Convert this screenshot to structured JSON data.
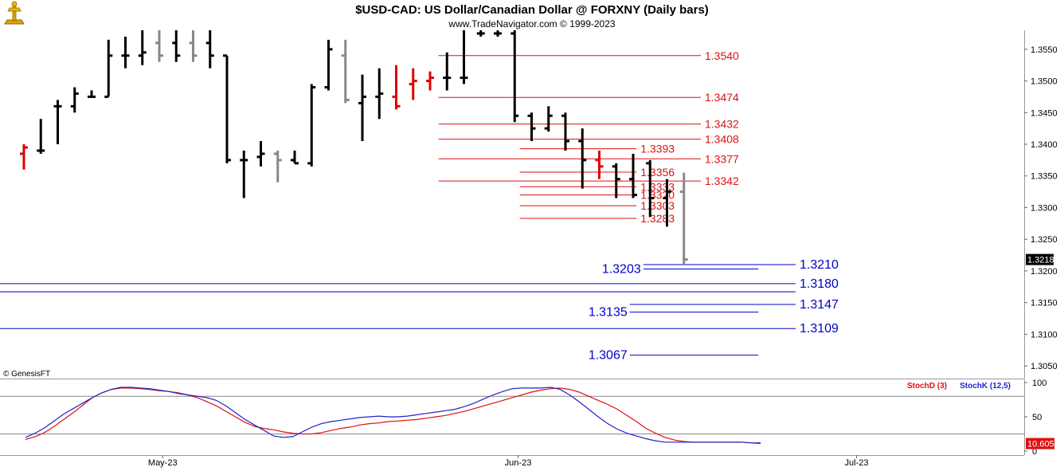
{
  "header": {
    "title": "$USD-CAD:  US Dollar/Canadian Dollar @ FORXNY  (Daily bars)",
    "subtitle": "www.TradeNavigator.com © 1999-2023",
    "logo_icon": "trade-navigator-logo-icon"
  },
  "copyright": "© GenesisFT",
  "colors": {
    "up_bar": "#000000",
    "down_bar": "#888888",
    "highlight_bar": "#e00000",
    "resistance": "#dd1111",
    "support": "#0000cc",
    "stoch_d": "#dd1111",
    "stoch_k": "#2222cc",
    "price_tag_bg": "#000000",
    "stoch_tag_bg": "#dd1111"
  },
  "chart_data": [
    {
      "type": "ohlc",
      "name": "price",
      "ylim": [
        1.303,
        1.358
      ],
      "y_ticks": [
        "1.3550",
        "1.3500",
        "1.3450",
        "1.3400",
        "1.3350",
        "1.3300",
        "1.3250",
        "1.3200",
        "1.3150",
        "1.3100",
        "1.3050"
      ],
      "last_price_label": "1.3218",
      "bars": [
        {
          "o": 1.3385,
          "h": 1.34,
          "l": 1.336,
          "c": 1.3395,
          "color": "highlight"
        },
        {
          "o": 1.339,
          "h": 1.344,
          "l": 1.3385,
          "c": 1.339,
          "color": "up"
        },
        {
          "o": 1.346,
          "h": 1.347,
          "l": 1.34,
          "c": 1.346,
          "color": "up"
        },
        {
          "o": 1.346,
          "h": 1.349,
          "l": 1.345,
          "c": 1.348,
          "color": "up"
        },
        {
          "o": 1.3475,
          "h": 1.3485,
          "l": 1.3475,
          "c": 1.3475,
          "color": "up"
        },
        {
          "o": 1.3475,
          "h": 1.3565,
          "l": 1.3475,
          "c": 1.354,
          "color": "up"
        },
        {
          "o": 1.354,
          "h": 1.357,
          "l": 1.352,
          "c": 1.354,
          "color": "up"
        },
        {
          "o": 1.354,
          "h": 1.358,
          "l": 1.3525,
          "c": 1.3545,
          "color": "up"
        },
        {
          "o": 1.356,
          "h": 1.358,
          "l": 1.353,
          "c": 1.354,
          "color": "down"
        },
        {
          "o": 1.356,
          "h": 1.358,
          "l": 1.353,
          "c": 1.354,
          "color": "up"
        },
        {
          "o": 1.356,
          "h": 1.358,
          "l": 1.353,
          "c": 1.354,
          "color": "down"
        },
        {
          "o": 1.356,
          "h": 1.358,
          "l": 1.352,
          "c": 1.354,
          "color": "up"
        },
        {
          "o": 1.354,
          "h": 1.354,
          "l": 1.337,
          "c": 1.3375,
          "color": "up"
        },
        {
          "o": 1.3375,
          "h": 1.339,
          "l": 1.3315,
          "c": 1.3375,
          "color": "up"
        },
        {
          "o": 1.338,
          "h": 1.3405,
          "l": 1.3365,
          "c": 1.3385,
          "color": "up"
        },
        {
          "o": 1.3385,
          "h": 1.339,
          "l": 1.334,
          "c": 1.3375,
          "color": "down"
        },
        {
          "o": 1.3375,
          "h": 1.339,
          "l": 1.337,
          "c": 1.337,
          "color": "up"
        },
        {
          "o": 1.337,
          "h": 1.3495,
          "l": 1.3365,
          "c": 1.349,
          "color": "up"
        },
        {
          "o": 1.349,
          "h": 1.3565,
          "l": 1.3485,
          "c": 1.355,
          "color": "up"
        },
        {
          "o": 1.354,
          "h": 1.3565,
          "l": 1.3465,
          "c": 1.347,
          "color": "down"
        },
        {
          "o": 1.3465,
          "h": 1.351,
          "l": 1.3405,
          "c": 1.3475,
          "color": "up"
        },
        {
          "o": 1.3475,
          "h": 1.352,
          "l": 1.344,
          "c": 1.348,
          "color": "up"
        },
        {
          "o": 1.3475,
          "h": 1.3525,
          "l": 1.3455,
          "c": 1.346,
          "color": "highlight"
        },
        {
          "o": 1.3495,
          "h": 1.352,
          "l": 1.347,
          "c": 1.35,
          "color": "highlight"
        },
        {
          "o": 1.35,
          "h": 1.3515,
          "l": 1.3485,
          "c": 1.3505,
          "color": "highlight"
        },
        {
          "o": 1.3505,
          "h": 1.3545,
          "l": 1.3485,
          "c": 1.3505,
          "color": "up"
        },
        {
          "o": 1.3505,
          "h": 1.358,
          "l": 1.3495,
          "c": 1.3505,
          "color": "up"
        },
        {
          "o": 1.3575,
          "h": 1.358,
          "l": 1.357,
          "c": 1.3575,
          "color": "up"
        },
        {
          "o": 1.3575,
          "h": 1.358,
          "l": 1.357,
          "c": 1.3575,
          "color": "up"
        },
        {
          "o": 1.3575,
          "h": 1.358,
          "l": 1.3435,
          "c": 1.3445,
          "color": "up"
        },
        {
          "o": 1.3445,
          "h": 1.345,
          "l": 1.3405,
          "c": 1.3425,
          "color": "up"
        },
        {
          "o": 1.3425,
          "h": 1.346,
          "l": 1.342,
          "c": 1.3445,
          "color": "up"
        },
        {
          "o": 1.3445,
          "h": 1.345,
          "l": 1.339,
          "c": 1.3405,
          "color": "up"
        },
        {
          "o": 1.3405,
          "h": 1.3425,
          "l": 1.333,
          "c": 1.3375,
          "color": "up"
        },
        {
          "o": 1.3375,
          "h": 1.339,
          "l": 1.3345,
          "c": 1.3365,
          "color": "highlight"
        },
        {
          "o": 1.3365,
          "h": 1.337,
          "l": 1.3315,
          "c": 1.3345,
          "color": "up"
        },
        {
          "o": 1.3345,
          "h": 1.3385,
          "l": 1.3315,
          "c": 1.332,
          "color": "up"
        },
        {
          "o": 1.337,
          "h": 1.3375,
          "l": 1.3285,
          "c": 1.3315,
          "color": "up"
        },
        {
          "o": 1.3315,
          "h": 1.3345,
          "l": 1.327,
          "c": 1.3325,
          "color": "up"
        },
        {
          "o": 1.3325,
          "h": 1.3355,
          "l": 1.321,
          "c": 1.3218,
          "color": "down"
        }
      ],
      "resistance_levels": [
        {
          "value": 1.354,
          "label": "1.3540",
          "from_bar": 24.5,
          "to_bar": 40
        },
        {
          "value": 1.3474,
          "label": "1.3474",
          "from_bar": 24.5,
          "to_bar": 40
        },
        {
          "value": 1.3432,
          "label": "1.3432",
          "from_bar": 24.5,
          "to_bar": 40
        },
        {
          "value": 1.3408,
          "label": "1.3408",
          "from_bar": 24.5,
          "to_bar": 40
        },
        {
          "value": 1.3393,
          "label": "1.3393",
          "from_bar": 29.3,
          "to_bar": 36.2
        },
        {
          "value": 1.3377,
          "label": "1.3377",
          "from_bar": 24.5,
          "to_bar": 40
        },
        {
          "value": 1.3356,
          "label": "1.3356",
          "from_bar": 29.3,
          "to_bar": 36.2
        },
        {
          "value": 1.3342,
          "label": "1.3342",
          "from_bar": 24.5,
          "to_bar": 40
        },
        {
          "value": 1.3333,
          "label": "1.3333",
          "from_bar": 29.3,
          "to_bar": 36.2
        },
        {
          "value": 1.332,
          "label": "1.3320",
          "from_bar": 29.3,
          "to_bar": 36.2
        },
        {
          "value": 1.3303,
          "label": "1.3303",
          "from_bar": 29.3,
          "to_bar": 36.2
        },
        {
          "value": 1.3283,
          "label": "1.3283",
          "from_bar": 29.3,
          "to_bar": 36.2
        }
      ],
      "support_levels": [
        {
          "value": 1.321,
          "label": "1.3210",
          "label_side": "right",
          "from_bar": 36.6,
          "to_bar": 45.6
        },
        {
          "value": 1.3203,
          "label": "1.3203",
          "label_side": "left",
          "from_bar": 36.6,
          "to_bar": 45.6
        },
        {
          "value": 1.318,
          "label": "1.3180",
          "label_side": "right",
          "from_bar": -1.5,
          "to_bar": 45.6
        },
        {
          "value": 1.3167,
          "label": "",
          "label_side": "right",
          "from_bar": -1.5,
          "to_bar": 45.6
        },
        {
          "value": 1.3147,
          "label": "1.3147",
          "label_side": "right",
          "from_bar": 35.8,
          "to_bar": 45.6
        },
        {
          "value": 1.3135,
          "label": "1.3135",
          "label_side": "left",
          "from_bar": 35.8,
          "to_bar": 45.6
        },
        {
          "value": 1.3109,
          "label": "1.3109",
          "label_side": "right",
          "from_bar": -1.5,
          "to_bar": 45.6
        },
        {
          "value": 1.3067,
          "label": "1.3067",
          "label_side": "left",
          "from_bar": 35.8,
          "to_bar": 45.6
        }
      ]
    },
    {
      "type": "line",
      "name": "stochastic",
      "ylim": [
        0,
        100
      ],
      "y_ticks": [
        "100",
        "50",
        "0"
      ],
      "reference_lines": [
        80,
        25
      ],
      "last_value_label": "10.605",
      "series": [
        {
          "name": "StochD (3)",
          "color_key": "stoch_d",
          "values": [
            17,
            21,
            27,
            36,
            46,
            56,
            67,
            78,
            85,
            90,
            92,
            92,
            91,
            90,
            88,
            87,
            85,
            82,
            78,
            72,
            66,
            58,
            50,
            42,
            36,
            33,
            31,
            28,
            26,
            25,
            25,
            27,
            30,
            33,
            35,
            38,
            40,
            41,
            43,
            44,
            45,
            46,
            48,
            50,
            52,
            55,
            58,
            62,
            66,
            70,
            74,
            78,
            82,
            86,
            89,
            91,
            92,
            90,
            86,
            80,
            74,
            68,
            61,
            52,
            43,
            33,
            26,
            20,
            16,
            14,
            13,
            13,
            13,
            13,
            13,
            13,
            12,
            11
          ]
        },
        {
          "name": "StochK (12,5)",
          "color_key": "stoch_k",
          "values": [
            20,
            26,
            34,
            44,
            54,
            62,
            70,
            78,
            85,
            90,
            93,
            93,
            92,
            91,
            89,
            87,
            84,
            82,
            80,
            78,
            74,
            66,
            56,
            46,
            38,
            30,
            22,
            20,
            21,
            28,
            35,
            40,
            43,
            45,
            47,
            49,
            50,
            51,
            50,
            50,
            51,
            53,
            55,
            57,
            59,
            61,
            65,
            70,
            76,
            82,
            87,
            91,
            92,
            92,
            92,
            93,
            90,
            82,
            72,
            61,
            50,
            40,
            32,
            26,
            22,
            18,
            15,
            13,
            13,
            13,
            13,
            13,
            13,
            13,
            13,
            13,
            12,
            12
          ]
        }
      ]
    }
  ],
  "x_axis": {
    "labels": [
      {
        "text": "May-23",
        "at_bar": 8.2
      },
      {
        "text": "Jun-23",
        "at_bar": 29.2
      },
      {
        "text": "Jul-23",
        "at_bar": 49.2
      }
    ]
  }
}
